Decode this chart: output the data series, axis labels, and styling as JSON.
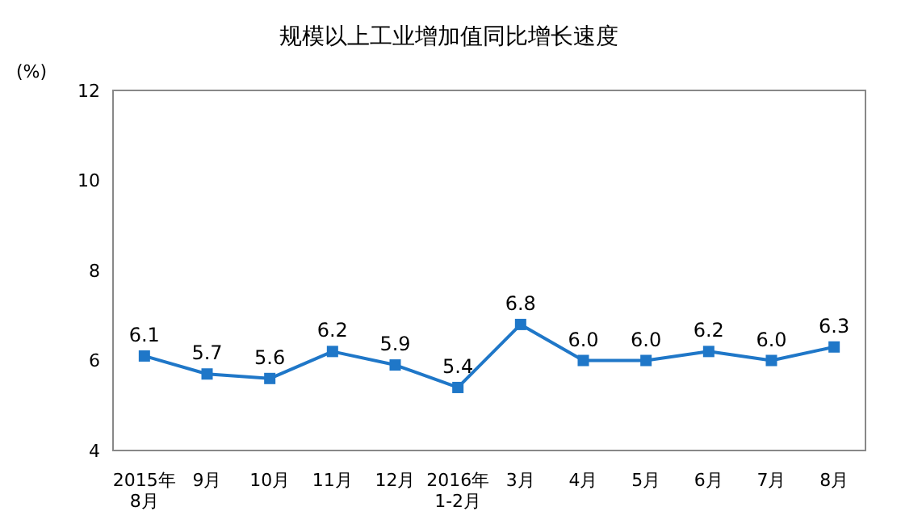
{
  "chart_data": {
    "type": "line",
    "title": "规模以上工业增加值同比增长速度",
    "ylabel": "(%)",
    "categories": [
      "2015年\n8月",
      "9月",
      "10月",
      "11月",
      "12月",
      "2016年\n1-2月",
      "3月",
      "4月",
      "5月",
      "6月",
      "7月",
      "8月"
    ],
    "series": [
      {
        "color": "#1f77c8",
        "values": [
          6.1,
          5.7,
          5.6,
          6.2,
          5.9,
          5.4,
          6.8,
          6.0,
          6.0,
          6.2,
          6.0,
          6.3
        ],
        "value_labels": [
          "6.1",
          "5.7",
          "5.6",
          "6.2",
          "5.9",
          "5.4",
          "6.8",
          "6.0",
          "6.0",
          "6.2",
          "6.0",
          "6.3"
        ]
      }
    ],
    "ylim": [
      4,
      12
    ],
    "yticks": [
      4,
      6,
      8,
      10,
      12
    ],
    "grid": false,
    "legend": false,
    "marker": "square",
    "line_style": "solid"
  }
}
